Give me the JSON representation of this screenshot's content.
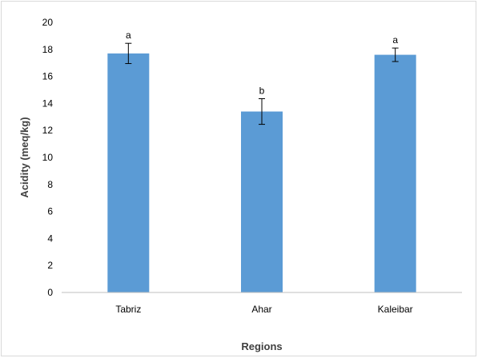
{
  "chart_data": {
    "type": "bar",
    "title": "",
    "xlabel": "Regions",
    "ylabel": "Acidity (meq/kg)",
    "categories": [
      "Tabriz",
      "Ahar",
      "Kaleibar"
    ],
    "values": [
      17.7,
      13.4,
      17.6
    ],
    "error": [
      0.75,
      0.95,
      0.5
    ],
    "significance_labels": [
      "a",
      "b",
      "a"
    ],
    "ylim": [
      0,
      20
    ],
    "yticks": [
      0,
      2,
      4,
      6,
      8,
      10,
      12,
      14,
      16,
      18,
      20
    ],
    "grid": false,
    "legend": "none",
    "bar_color": "#5b9bd5",
    "error_bar_color": "#000000"
  }
}
